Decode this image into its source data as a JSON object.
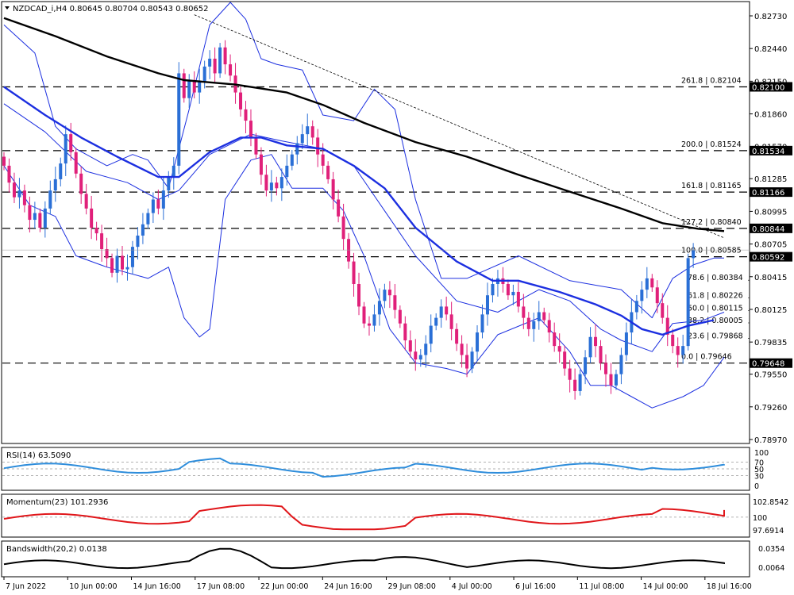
{
  "header": {
    "symbol_line": "NZDCAD_i,H4  0.80645 0.80704 0.80543 0.80652"
  },
  "chart_data": {
    "type": "candlestick",
    "main": {
      "yaxis": {
        "ticks": [
          "0.82730",
          "0.82440",
          "0.82150",
          "0.81860",
          "0.81570",
          "0.81285",
          "0.80995",
          "0.80705",
          "0.80415",
          "0.80125",
          "0.79835",
          "0.79550",
          "0.79260",
          "0.78970"
        ]
      },
      "levels": [
        {
          "value": 0.821,
          "label": "0.82100",
          "fib": "261.8 | 0.82104"
        },
        {
          "value": 0.81534,
          "label": "0.81534",
          "fib": "200.0 | 0.81524"
        },
        {
          "value": 0.81166,
          "label": "0.81166",
          "fib": "161.8 | 0.81165"
        },
        {
          "value": 0.80844,
          "label": "0.80844",
          "fib": "127.2 | 0.80840"
        },
        {
          "value": 0.80592,
          "label": "0.80592",
          "fib": "100.0 | 0.80585"
        },
        {
          "value": 0.79648,
          "label": "0.79648",
          "fib": "0.0 | 0.79646"
        }
      ],
      "fib_inner": [
        {
          "value": 0.80384,
          "label": "78.6 | 0.80384"
        },
        {
          "value": 0.80226,
          "label": "61.8 | 0.80226"
        },
        {
          "value": 0.80115,
          "label": "50.0 | 0.80115"
        },
        {
          "value": 0.80005,
          "label": "38.2 | 0.80005"
        },
        {
          "value": 0.79868,
          "label": "23.6 | 0.79868"
        }
      ],
      "ma_black": [
        [
          0,
          0.8271
        ],
        [
          10,
          0.8255
        ],
        [
          20,
          0.8237
        ],
        [
          30,
          0.8222
        ],
        [
          35,
          0.8216
        ],
        [
          45,
          0.8212
        ],
        [
          55,
          0.8205
        ],
        [
          62,
          0.8194
        ],
        [
          70,
          0.8178
        ],
        [
          80,
          0.8161
        ],
        [
          90,
          0.8148
        ],
        [
          100,
          0.8132
        ],
        [
          110,
          0.8117
        ],
        [
          120,
          0.8102
        ],
        [
          128,
          0.8089
        ],
        [
          135,
          0.8084
        ],
        [
          140,
          0.8082
        ]
      ],
      "ma_blue": [
        [
          0,
          0.821
        ],
        [
          8,
          0.8185
        ],
        [
          15,
          0.8165
        ],
        [
          22,
          0.8148
        ],
        [
          30,
          0.813
        ],
        [
          34,
          0.813
        ],
        [
          40,
          0.8152
        ],
        [
          46,
          0.8165
        ],
        [
          50,
          0.8165
        ],
        [
          55,
          0.8158
        ],
        [
          62,
          0.8155
        ],
        [
          68,
          0.814
        ],
        [
          74,
          0.812
        ],
        [
          80,
          0.8085
        ],
        [
          88,
          0.8055
        ],
        [
          95,
          0.8038
        ],
        [
          100,
          0.8038
        ],
        [
          108,
          0.8028
        ],
        [
          115,
          0.8017
        ],
        [
          120,
          0.8007
        ],
        [
          124,
          0.7995
        ],
        [
          128,
          0.799
        ],
        [
          133,
          0.7998
        ],
        [
          138,
          0.8003
        ]
      ],
      "bb_upper": [
        [
          0,
          0.8265
        ],
        [
          6,
          0.824
        ],
        [
          10,
          0.8175
        ],
        [
          14,
          0.8155
        ],
        [
          20,
          0.814
        ],
        [
          25,
          0.815
        ],
        [
          28,
          0.8145
        ],
        [
          32,
          0.812
        ],
        [
          36,
          0.819
        ],
        [
          40,
          0.8265
        ],
        [
          44,
          0.8285
        ],
        [
          47,
          0.827
        ],
        [
          50,
          0.8235
        ],
        [
          53,
          0.823
        ],
        [
          58,
          0.8225
        ],
        [
          62,
          0.8185
        ],
        [
          68,
          0.818
        ],
        [
          72,
          0.8208
        ],
        [
          76,
          0.819
        ],
        [
          80,
          0.811
        ],
        [
          85,
          0.804
        ],
        [
          90,
          0.804
        ],
        [
          100,
          0.806
        ],
        [
          110,
          0.8038
        ],
        [
          120,
          0.803
        ],
        [
          126,
          0.8005
        ],
        [
          130,
          0.804
        ],
        [
          134,
          0.8052
        ],
        [
          138,
          0.8058
        ],
        [
          140,
          0.8058
        ]
      ],
      "bb_lower": [
        [
          0,
          0.814
        ],
        [
          5,
          0.8105
        ],
        [
          10,
          0.8095
        ],
        [
          14,
          0.806
        ],
        [
          20,
          0.805
        ],
        [
          28,
          0.804
        ],
        [
          32,
          0.805
        ],
        [
          35,
          0.8005
        ],
        [
          38,
          0.7988
        ],
        [
          40,
          0.7995
        ],
        [
          43,
          0.811
        ],
        [
          48,
          0.8145
        ],
        [
          52,
          0.815
        ],
        [
          56,
          0.812
        ],
        [
          62,
          0.812
        ],
        [
          66,
          0.81
        ],
        [
          70,
          0.806
        ],
        [
          75,
          0.7995
        ],
        [
          80,
          0.7965
        ],
        [
          86,
          0.796
        ],
        [
          90,
          0.7955
        ],
        [
          96,
          0.799
        ],
        [
          104,
          0.8005
        ],
        [
          110,
          0.7975
        ],
        [
          114,
          0.7945
        ],
        [
          118,
          0.7945
        ],
        [
          122,
          0.7935
        ],
        [
          126,
          0.7925
        ],
        [
          132,
          0.7935
        ],
        [
          136,
          0.7945
        ],
        [
          140,
          0.797
        ]
      ],
      "bb_mid": [
        [
          0,
          0.8195
        ],
        [
          8,
          0.817
        ],
        [
          16,
          0.8135
        ],
        [
          24,
          0.8125
        ],
        [
          30,
          0.811
        ],
        [
          34,
          0.8118
        ],
        [
          40,
          0.815
        ],
        [
          48,
          0.8168
        ],
        [
          54,
          0.8162
        ],
        [
          62,
          0.8155
        ],
        [
          68,
          0.814
        ],
        [
          74,
          0.81
        ],
        [
          80,
          0.806
        ],
        [
          88,
          0.802
        ],
        [
          96,
          0.801
        ],
        [
          104,
          0.803
        ],
        [
          110,
          0.802
        ],
        [
          116,
          0.7995
        ],
        [
          120,
          0.7985
        ],
        [
          126,
          0.7975
        ],
        [
          130,
          0.8
        ],
        [
          136,
          0.8003
        ],
        [
          140,
          0.801
        ]
      ],
      "trendline": [
        [
          37,
          0.8274
        ],
        [
          140,
          0.8076
        ]
      ],
      "close": [
        0.814,
        0.8125,
        0.8112,
        0.8118,
        0.8105,
        0.8092,
        0.8098,
        0.8085,
        0.8102,
        0.8118,
        0.8128,
        0.8142,
        0.8168,
        0.8152,
        0.8133,
        0.8115,
        0.8102,
        0.8085,
        0.808,
        0.8066,
        0.8058,
        0.8045,
        0.806,
        0.8048,
        0.805,
        0.8068,
        0.8078,
        0.8088,
        0.8098,
        0.811,
        0.8102,
        0.8118,
        0.813,
        0.814,
        0.8222,
        0.82,
        0.8215,
        0.8205,
        0.8215,
        0.8228,
        0.8235,
        0.8222,
        0.8245,
        0.823,
        0.822,
        0.8205,
        0.819,
        0.818,
        0.8165,
        0.815,
        0.8132,
        0.8118,
        0.8125,
        0.812,
        0.813,
        0.814,
        0.815,
        0.816,
        0.8168,
        0.8175,
        0.8165,
        0.815,
        0.814,
        0.8128,
        0.811,
        0.8095,
        0.8075,
        0.8055,
        0.8035,
        0.8015,
        0.8,
        0.7998,
        0.8008,
        0.802,
        0.803,
        0.8025,
        0.8012,
        0.8,
        0.7985,
        0.7975,
        0.7968,
        0.7972,
        0.7982,
        0.7998,
        0.8005,
        0.8015,
        0.8008,
        0.7995,
        0.7982,
        0.7972,
        0.796,
        0.7975,
        0.7992,
        0.8008,
        0.8025,
        0.8035,
        0.804,
        0.8035,
        0.8025,
        0.8028,
        0.8015,
        0.8005,
        0.7995,
        0.8002,
        0.801,
        0.8003,
        0.7992,
        0.798,
        0.7975,
        0.796,
        0.795,
        0.794,
        0.7955,
        0.797,
        0.7988,
        0.798,
        0.7965,
        0.7955,
        0.7945,
        0.7955,
        0.7972,
        0.7992,
        0.801,
        0.802,
        0.803,
        0.804,
        0.8032,
        0.8018,
        0.8005,
        0.799,
        0.798,
        0.7972,
        0.798,
        0.8058,
        0.8065
      ],
      "current_price": 0.80652
    },
    "rsi": {
      "label": "RSI(14) 63.5090",
      "ticks": [
        "100",
        "70",
        "50",
        "30",
        "0"
      ]
    },
    "momentum": {
      "label": "Momentum(23) 101.2936",
      "ticks": [
        "102.8542",
        "100",
        "97.6914"
      ]
    },
    "bandswidth": {
      "label": "Bandswidth(20,2) 0.0138",
      "ticks": [
        "0.0354",
        "0.0064"
      ]
    },
    "xaxis": {
      "ticks": [
        "7 Jun 2022",
        "10 Jun 00:00",
        "14 Jun 16:00",
        "17 Jun 08:00",
        "22 Jun 00:00",
        "24 Jun 16:00",
        "29 Jun 08:00",
        "4 Jul 00:00",
        "6 Jul 16:00",
        "11 Jul 08:00",
        "14 Jul 00:00",
        "18 Jul 16:00"
      ]
    }
  }
}
